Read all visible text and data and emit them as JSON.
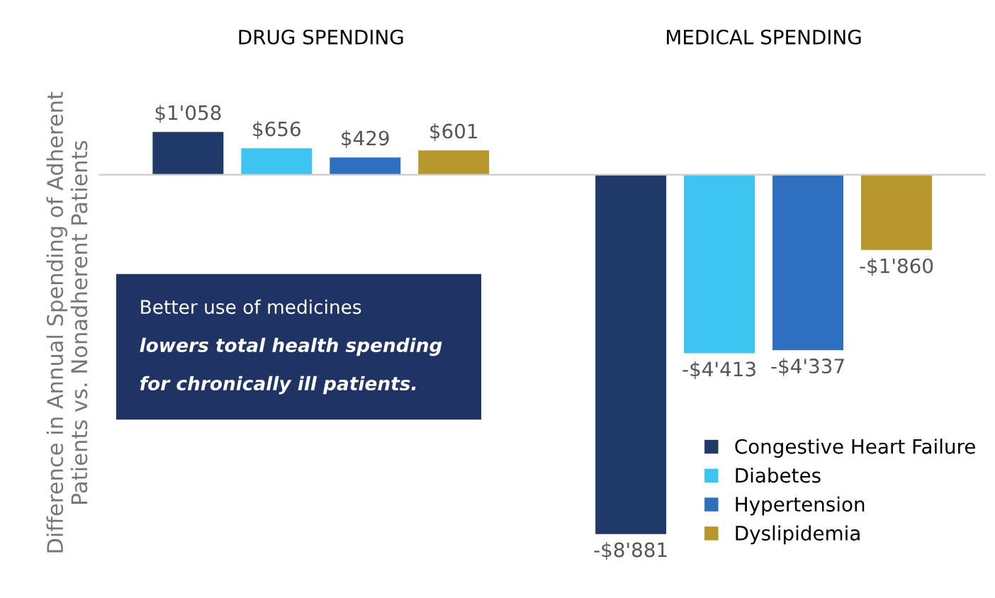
{
  "chart_data": {
    "type": "bar",
    "categories": [
      "DRUG SPENDING",
      "MEDICAL SPENDING"
    ],
    "ylabel": "Difference in Annual Spending of Adherent\nPatients vs. Nonadherent Patients",
    "series": [
      {
        "name": "Congestive Heart Failure",
        "color": "#1f3a68",
        "values": [
          1058,
          -8881
        ],
        "value_labels": [
          "$1'058",
          "-$8'881"
        ]
      },
      {
        "name": "Diabetes",
        "color": "#3ec4f0",
        "values": [
          656,
          -4413
        ],
        "value_labels": [
          "$656",
          "-$4'413"
        ]
      },
      {
        "name": "Hypertension",
        "color": "#2f6fbf",
        "values": [
          429,
          -4337
        ],
        "value_labels": [
          "$429",
          "-$4'337"
        ]
      },
      {
        "name": "Dyslipidemia",
        "color": "#b8962e",
        "values": [
          601,
          -1860
        ],
        "value_labels": [
          "$601",
          "-$1'860"
        ]
      }
    ],
    "annotations": [
      "Better use of medicines",
      "lowers total health spending",
      "for chronically ill patients."
    ],
    "legend": "bottom right",
    "grid": false
  }
}
